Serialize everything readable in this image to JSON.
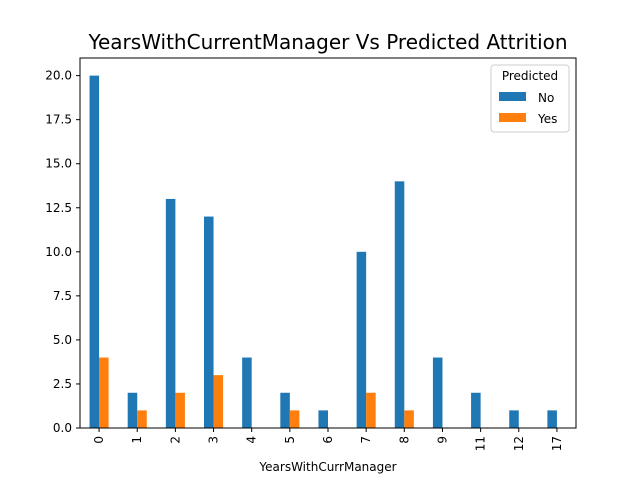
{
  "chart_data": {
    "type": "bar",
    "title": "YearsWithCurrentManager Vs Predicted Attrition",
    "xlabel": "YearsWithCurrManager",
    "ylabel": "",
    "categories": [
      "0",
      "1",
      "2",
      "3",
      "4",
      "5",
      "6",
      "7",
      "8",
      "9",
      "11",
      "12",
      "17"
    ],
    "series": [
      {
        "name": "No",
        "color": "#1f77b4",
        "values": [
          20,
          2,
          13,
          12,
          4,
          2,
          1,
          10,
          14,
          4,
          2,
          1,
          1
        ]
      },
      {
        "name": "Yes",
        "color": "#ff7f0e",
        "values": [
          4,
          1,
          2,
          3,
          0,
          1,
          0,
          2,
          1,
          0,
          0,
          0,
          0
        ]
      }
    ],
    "ylim": [
      0,
      21
    ],
    "yticks": [
      "0.0",
      "2.5",
      "5.0",
      "7.5",
      "10.0",
      "12.5",
      "15.0",
      "17.5",
      "20.0"
    ],
    "legend": {
      "title": "Predicted",
      "placement": "top-right"
    },
    "grid": false
  }
}
